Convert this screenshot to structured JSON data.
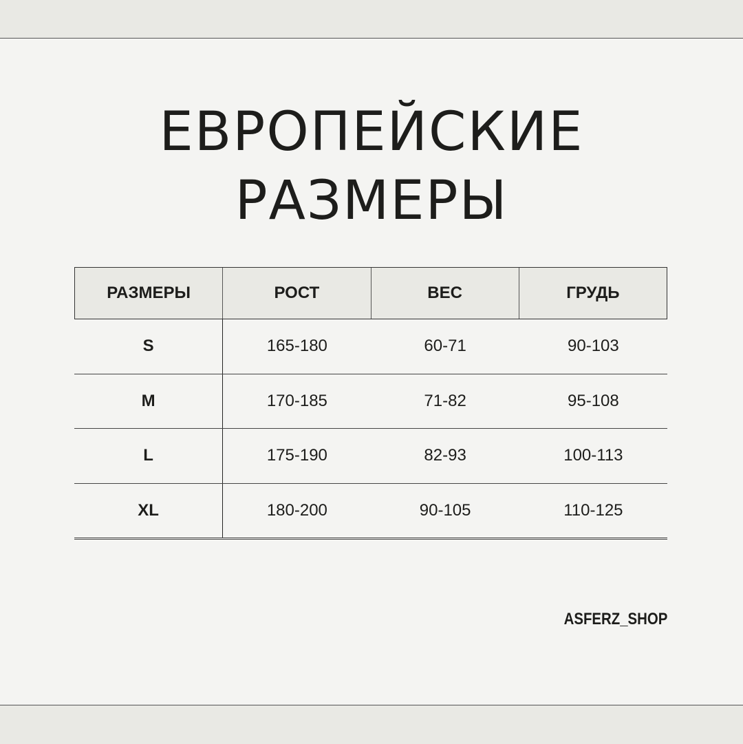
{
  "title": [
    "ЕВРОПЕЙСКИЕ",
    "РАЗМЕРЫ"
  ],
  "table": {
    "headers": [
      "РАЗМЕРЫ",
      "РОСТ",
      "ВЕС",
      "ГРУДЬ"
    ],
    "rows": [
      [
        "S",
        "165-180",
        "60-71",
        "90-103"
      ],
      [
        "M",
        "170-185",
        "71-82",
        "95-108"
      ],
      [
        "L",
        "175-190",
        "82-93",
        "100-113"
      ],
      [
        "XL",
        "180-200",
        "90-105",
        "110-125"
      ]
    ]
  },
  "brand": "ASFERZ_SHOP",
  "colors": {
    "background": "#f4f4f2",
    "band": "#e9e9e4",
    "text": "#1d1d1b"
  }
}
